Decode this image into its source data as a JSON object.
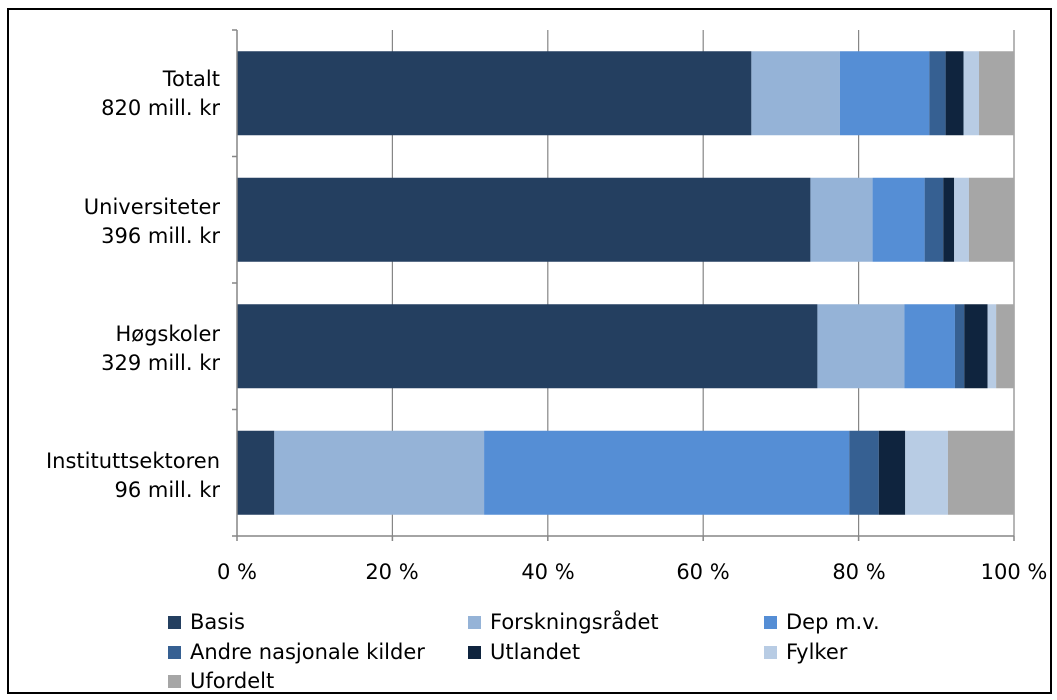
{
  "chart_data": {
    "type": "bar",
    "orientation": "horizontal",
    "stacked": true,
    "categories": [
      {
        "line1": "Totalt",
        "line2": "820 mill. kr"
      },
      {
        "line1": "Universiteter",
        "line2": "396 mill. kr"
      },
      {
        "line1": "Høgskoler",
        "line2": "329 mill. kr"
      },
      {
        "line1": "Instituttsektoren",
        "line2": "96 mill. kr"
      }
    ],
    "series": [
      {
        "name": "Basis",
        "color": "#243f60",
        "values": [
          66.2,
          73.8,
          74.7,
          4.8
        ]
      },
      {
        "name": "Forskningsrådet",
        "color": "#95b3d7",
        "values": [
          11.4,
          8.0,
          11.2,
          27.0
        ]
      },
      {
        "name": "Dep m.v.",
        "color": "#558ed5",
        "values": [
          11.5,
          6.7,
          6.5,
          47.0
        ]
      },
      {
        "name": "Andre nasjonale kilder",
        "color": "#366092",
        "values": [
          2.1,
          2.4,
          1.2,
          3.8
        ]
      },
      {
        "name": "Utlandet",
        "color": "#0f243e",
        "values": [
          2.3,
          1.4,
          3.0,
          3.4
        ]
      },
      {
        "name": "Fylker",
        "color": "#b8cce4",
        "values": [
          2.0,
          1.9,
          1.1,
          5.5
        ]
      },
      {
        "name": "Ufordelt",
        "color": "#a6a6a6",
        "values": [
          4.5,
          5.8,
          2.3,
          8.5
        ]
      }
    ],
    "xlim": [
      0,
      100
    ],
    "x_ticks": [
      "0 %",
      "20 %",
      "40 %",
      "60 %",
      "80 %",
      "100 %"
    ],
    "grid": true,
    "legend_position": "bottom"
  }
}
